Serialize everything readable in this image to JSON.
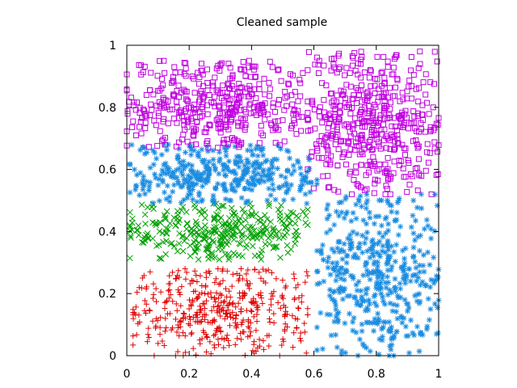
{
  "chart_data": {
    "type": "scatter",
    "title": "Cleaned sample",
    "xlabel": "",
    "ylabel": "",
    "xlim": [
      0,
      1
    ],
    "ylim": [
      0,
      1
    ],
    "x_ticks": [
      "0",
      "0.2",
      "0.4",
      "0.6",
      "0.8",
      "1"
    ],
    "y_ticks": [
      "0",
      "0.2",
      "0.4",
      "0.6",
      "0.8",
      "1"
    ],
    "grid": false,
    "legend": "none",
    "series": [
      {
        "marker": "plus",
        "color": "#e00000",
        "clusters": [
          {
            "x_range": [
              0.02,
              0.58
            ],
            "y_range": [
              0.0,
              0.28
            ],
            "count": 420
          }
        ]
      },
      {
        "marker": "cross",
        "color": "#00a000",
        "clusters": [
          {
            "x_range": [
              0.01,
              0.58
            ],
            "y_range": [
              0.31,
              0.49
            ],
            "count": 330
          }
        ]
      },
      {
        "marker": "asterisk",
        "color": "#1a8ce0",
        "clusters": [
          {
            "x_range": [
              0.01,
              0.61
            ],
            "y_range": [
              0.49,
              0.68
            ],
            "count": 380
          },
          {
            "x_range": [
              0.61,
              1.0
            ],
            "y_range": [
              0.0,
              0.52
            ],
            "count": 450
          }
        ]
      },
      {
        "marker": "square",
        "color": "#c000e0",
        "clusters": [
          {
            "x_range": [
              0.0,
              0.58
            ],
            "y_range": [
              0.67,
              0.95
            ],
            "count": 420
          },
          {
            "x_range": [
              0.58,
              1.0
            ],
            "y_range": [
              0.52,
              0.98
            ],
            "count": 480
          }
        ]
      }
    ]
  }
}
